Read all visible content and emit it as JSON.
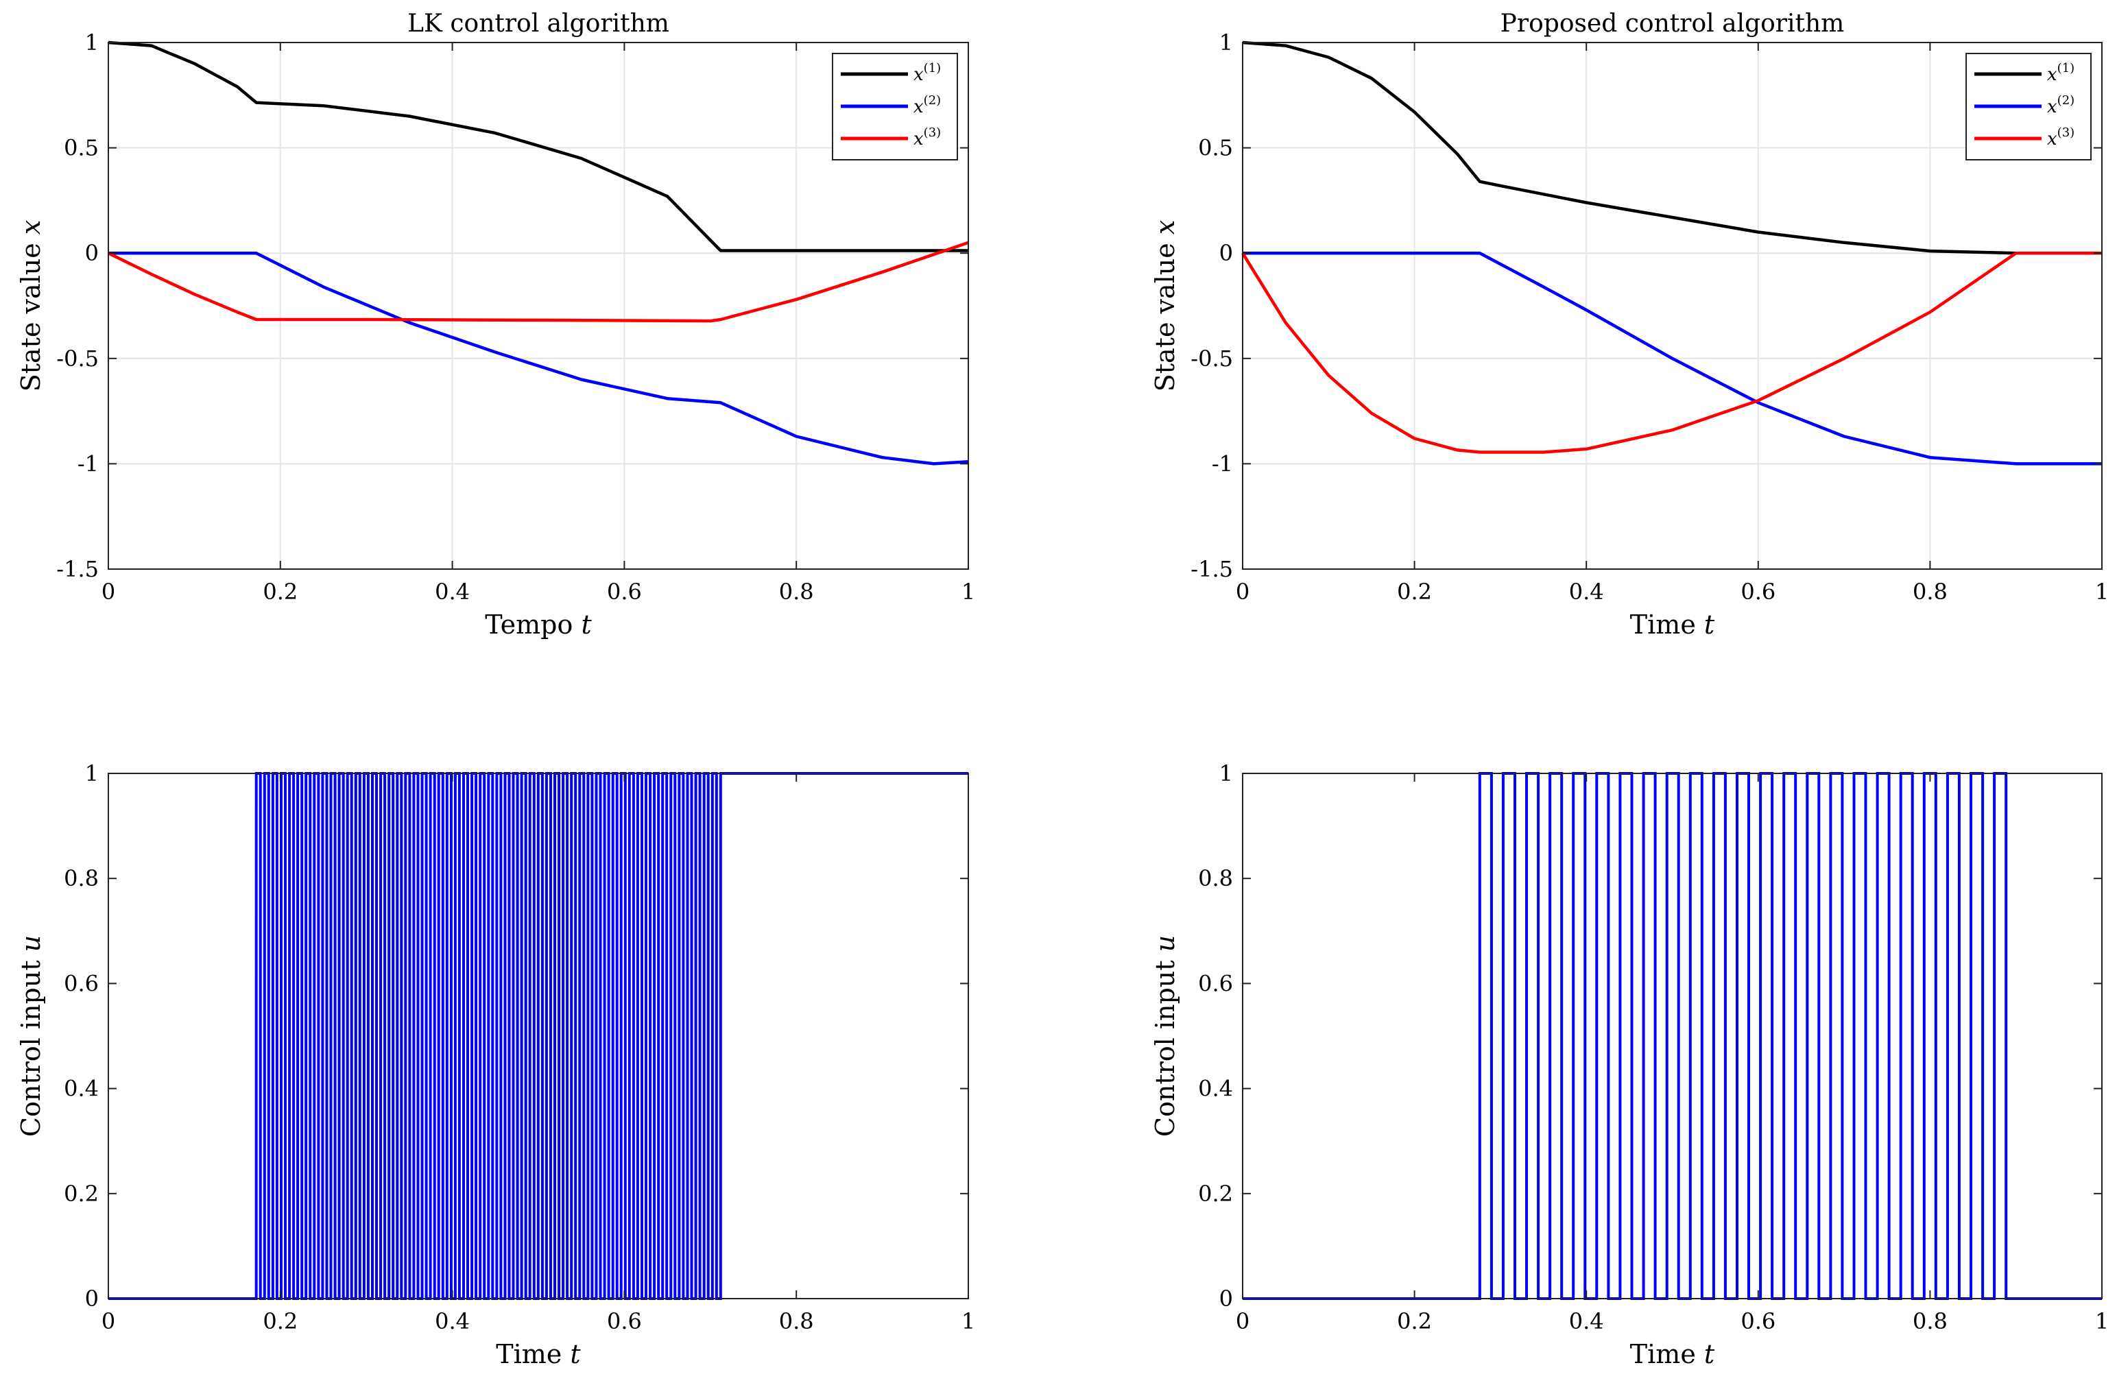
{
  "colors": {
    "x1": "#000000",
    "x2": "#0000ff",
    "x3": "#ff0000",
    "u": "#0000ff",
    "grid": "#e5e5e5"
  },
  "chart_data": [
    {
      "type": "line",
      "title": "LK control algorithm",
      "xlabel": "Tempo",
      "xlabel_var": "t",
      "ylabel": "State value",
      "ylabel_var": "x",
      "xlim": [
        0,
        1
      ],
      "ylim": [
        -1.5,
        1
      ],
      "xticks": [
        "0",
        "0.2",
        "0.4",
        "0.6",
        "0.8",
        "1"
      ],
      "yticks": [
        "-1.5",
        "-1",
        "-0.5",
        "0",
        "0.5",
        "1"
      ],
      "xtick_values": [
        0,
        0.2,
        0.4,
        0.6,
        0.8,
        1
      ],
      "ytick_values": [
        -1.5,
        -1,
        -0.5,
        0,
        0.5,
        1
      ],
      "grid": true,
      "legend": "top-right",
      "series": [
        {
          "name": "x",
          "sup": "(1)",
          "x": [
            0,
            0.05,
            0.1,
            0.15,
            0.172,
            0.25,
            0.35,
            0.45,
            0.55,
            0.65,
            0.712,
            0.8,
            0.9,
            1.0
          ],
          "y": [
            1.0,
            0.985,
            0.9,
            0.79,
            0.715,
            0.7,
            0.65,
            0.57,
            0.45,
            0.27,
            0.012,
            0.012,
            0.012,
            0.012
          ]
        },
        {
          "name": "x",
          "sup": "(2)",
          "x": [
            0,
            0.172,
            0.25,
            0.35,
            0.45,
            0.55,
            0.65,
            0.712,
            0.8,
            0.9,
            0.96,
            1.0
          ],
          "y": [
            0,
            0,
            -0.16,
            -0.33,
            -0.47,
            -0.6,
            -0.69,
            -0.71,
            -0.87,
            -0.97,
            -1.0,
            -0.99
          ]
        },
        {
          "name": "x",
          "sup": "(3)",
          "x": [
            0,
            0.05,
            0.1,
            0.15,
            0.172,
            0.3,
            0.5,
            0.7,
            0.712,
            0.8,
            0.9,
            1.0
          ],
          "y": [
            0,
            -0.1,
            -0.195,
            -0.28,
            -0.315,
            -0.315,
            -0.318,
            -0.322,
            -0.315,
            -0.22,
            -0.09,
            0.05
          ]
        }
      ]
    },
    {
      "type": "line",
      "title": "Proposed control algorithm",
      "xlabel": "Time",
      "xlabel_var": "t",
      "ylabel": "State value",
      "ylabel_var": "x",
      "xlim": [
        0,
        1
      ],
      "ylim": [
        -1.5,
        1
      ],
      "xticks": [
        "0",
        "0.2",
        "0.4",
        "0.6",
        "0.8",
        "1"
      ],
      "yticks": [
        "-1.5",
        "-1",
        "-0.5",
        "0",
        "0.5",
        "1"
      ],
      "xtick_values": [
        0,
        0.2,
        0.4,
        0.6,
        0.8,
        1
      ],
      "ytick_values": [
        -1.5,
        -1,
        -0.5,
        0,
        0.5,
        1
      ],
      "grid": true,
      "legend": "top-right",
      "series": [
        {
          "name": "x",
          "sup": "(1)",
          "x": [
            0,
            0.05,
            0.1,
            0.15,
            0.2,
            0.25,
            0.276,
            0.3,
            0.4,
            0.5,
            0.6,
            0.7,
            0.8,
            0.9,
            1.0
          ],
          "y": [
            1.0,
            0.985,
            0.93,
            0.83,
            0.67,
            0.47,
            0.34,
            0.32,
            0.24,
            0.17,
            0.1,
            0.05,
            0.01,
            0.0,
            0.0
          ]
        },
        {
          "name": "x",
          "sup": "(2)",
          "x": [
            0,
            0.276,
            0.35,
            0.4,
            0.5,
            0.6,
            0.7,
            0.8,
            0.9,
            1.0
          ],
          "y": [
            0,
            0,
            -0.16,
            -0.27,
            -0.5,
            -0.71,
            -0.87,
            -0.97,
            -1.0,
            -1.0
          ]
        },
        {
          "name": "x",
          "sup": "(3)",
          "x": [
            0,
            0.05,
            0.1,
            0.15,
            0.2,
            0.25,
            0.276,
            0.35,
            0.4,
            0.5,
            0.6,
            0.7,
            0.8,
            0.9,
            1.0
          ],
          "y": [
            0,
            -0.33,
            -0.58,
            -0.76,
            -0.88,
            -0.935,
            -0.945,
            -0.945,
            -0.93,
            -0.84,
            -0.7,
            -0.5,
            -0.28,
            0.0,
            0.0
          ]
        }
      ]
    },
    {
      "type": "line",
      "xlabel": "Time",
      "xlabel_var": "t",
      "ylabel": "Control input",
      "ylabel_var": "u",
      "xlim": [
        0,
        1
      ],
      "ylim": [
        0,
        1
      ],
      "xticks": [
        "0",
        "0.2",
        "0.4",
        "0.6",
        "0.8",
        "1"
      ],
      "yticks": [
        "0",
        "0.2",
        "0.4",
        "0.6",
        "0.8",
        "1"
      ],
      "xtick_values": [
        0,
        0.2,
        0.4,
        0.6,
        0.8,
        1
      ],
      "ytick_values": [
        0,
        0.2,
        0.4,
        0.6,
        0.8,
        1
      ],
      "grid": false,
      "switching": {
        "start": 0.172,
        "end": 0.712,
        "pulses": 56,
        "before": 0,
        "after": 1
      }
    },
    {
      "type": "line",
      "xlabel": "Time",
      "xlabel_var": "t",
      "ylabel": "Control input",
      "ylabel_var": "u",
      "xlim": [
        0,
        1
      ],
      "ylim": [
        0,
        1
      ],
      "xticks": [
        "0",
        "0.2",
        "0.4",
        "0.6",
        "0.8",
        "1"
      ],
      "yticks": [
        "0",
        "0.2",
        "0.4",
        "0.6",
        "0.8",
        "1"
      ],
      "xtick_values": [
        0,
        0.2,
        0.4,
        0.6,
        0.8,
        1
      ],
      "ytick_values": [
        0,
        0.2,
        0.4,
        0.6,
        0.8,
        1
      ],
      "grid": false,
      "switching": {
        "start": 0.276,
        "end": 0.902,
        "pulses": 23,
        "before": 0,
        "after": 0
      }
    }
  ]
}
